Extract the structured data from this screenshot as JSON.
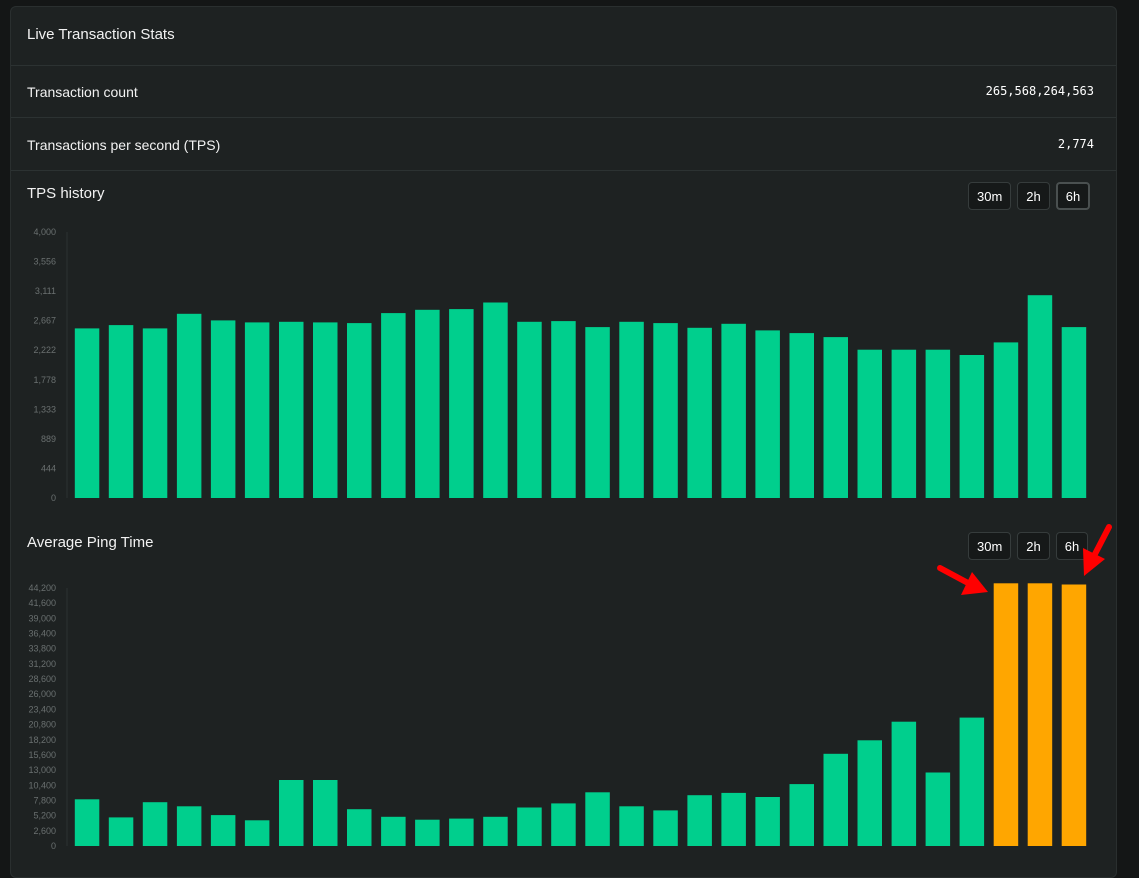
{
  "card": {
    "title": "Live Transaction Stats",
    "stats": [
      {
        "label": "Transaction count",
        "value": "265,568,264,563"
      },
      {
        "label": "Transactions per second (TPS)",
        "value": "2,774"
      }
    ]
  },
  "tps_section": {
    "title": "TPS history",
    "ranges": [
      "30m",
      "2h",
      "6h"
    ],
    "active_range": "6h"
  },
  "ping_section": {
    "title": "Average Ping Time",
    "ranges": [
      "30m",
      "2h",
      "6h"
    ],
    "active_range": "6h"
  },
  "colors": {
    "bar": "#00cf8d",
    "highlight": "#ffa600",
    "arrow": "#ff0000"
  },
  "chart_data": [
    {
      "type": "bar",
      "title": "TPS history",
      "ylim": [
        0,
        4000
      ],
      "yticks": [
        "0",
        "444",
        "889",
        "1,333",
        "1,778",
        "2,222",
        "2,667",
        "3,111",
        "3,556",
        "4,000"
      ],
      "values": [
        2550,
        2600,
        2550,
        2770,
        2670,
        2640,
        2650,
        2640,
        2630,
        2780,
        2830,
        2840,
        2940,
        2650,
        2660,
        2570,
        2650,
        2630,
        2560,
        2620,
        2520,
        2480,
        2420,
        2230,
        2230,
        2230,
        2150,
        2340,
        3050,
        2570
      ],
      "grid": false,
      "legend": "none"
    },
    {
      "type": "bar",
      "title": "Average Ping Time",
      "ylim": [
        0,
        44200
      ],
      "yticks": [
        "0",
        "2,600",
        "5,200",
        "7,800",
        "10,400",
        "13,000",
        "15,600",
        "18,200",
        "20,800",
        "23,400",
        "26,000",
        "28,600",
        "31,200",
        "33,800",
        "36,400",
        "39,000",
        "41,600",
        "44,200"
      ],
      "values": [
        8000,
        4900,
        7500,
        6800,
        5300,
        4400,
        11300,
        11300,
        6300,
        5000,
        4500,
        4700,
        5000,
        6600,
        7300,
        9200,
        6800,
        6100,
        8700,
        9100,
        8400,
        10600,
        15800,
        18100,
        21300,
        12600,
        22000,
        45000,
        45000,
        44800
      ],
      "highlighted": [
        27,
        28,
        29
      ],
      "grid": false,
      "legend": "none"
    }
  ]
}
